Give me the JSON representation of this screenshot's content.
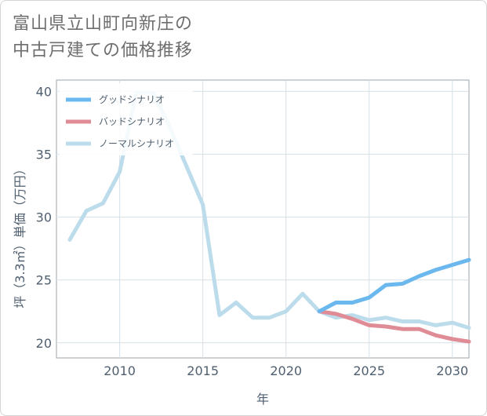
{
  "title_lines": [
    "富山県立山町向新庄の",
    "中古戸建ての価格推移"
  ],
  "chart_data": {
    "type": "line",
    "xlabel": "年",
    "ylabel": "坪（3.3㎡）単価（万円）",
    "xlim": [
      2006.2,
      2031
    ],
    "ylim": [
      18.8,
      40.9
    ],
    "x_ticks": [
      2010,
      2015,
      2020,
      2025,
      2030
    ],
    "y_ticks": [
      20,
      25,
      30,
      35,
      40
    ],
    "grid": true,
    "legend_position": "top-left",
    "series": [
      {
        "name": "グッドシナリオ",
        "color": "#6ab8ee",
        "x": [
          2022,
          2023,
          2024,
          2025,
          2026,
          2027,
          2028,
          2029,
          2030,
          2031
        ],
        "values": [
          22.5,
          23.2,
          23.2,
          23.6,
          24.6,
          24.7,
          25.3,
          25.8,
          26.2,
          26.6
        ]
      },
      {
        "name": "バッドシナリオ",
        "color": "#e08c96",
        "x": [
          2022,
          2023,
          2024,
          2025,
          2026,
          2027,
          2028,
          2029,
          2030,
          2031
        ],
        "values": [
          22.5,
          22.3,
          21.9,
          21.4,
          21.3,
          21.1,
          21.1,
          20.6,
          20.3,
          20.1
        ]
      },
      {
        "name": "ノーマルシナリオ",
        "color": "#bcdcec",
        "x": [
          2007,
          2008,
          2009,
          2010,
          2011,
          2012,
          2013,
          2014,
          2015,
          2016,
          2017,
          2018,
          2019,
          2020,
          2021,
          2022,
          2023,
          2024,
          2025,
          2026,
          2027,
          2028,
          2029,
          2030,
          2031
        ],
        "values": [
          28.2,
          30.5,
          31.1,
          33.6,
          39.9,
          39.9,
          37.2,
          34.1,
          31.0,
          22.2,
          23.2,
          22.0,
          22.0,
          22.5,
          23.9,
          22.5,
          22.0,
          22.2,
          21.8,
          22.0,
          21.7,
          21.7,
          21.4,
          21.6,
          21.2
        ]
      }
    ]
  }
}
